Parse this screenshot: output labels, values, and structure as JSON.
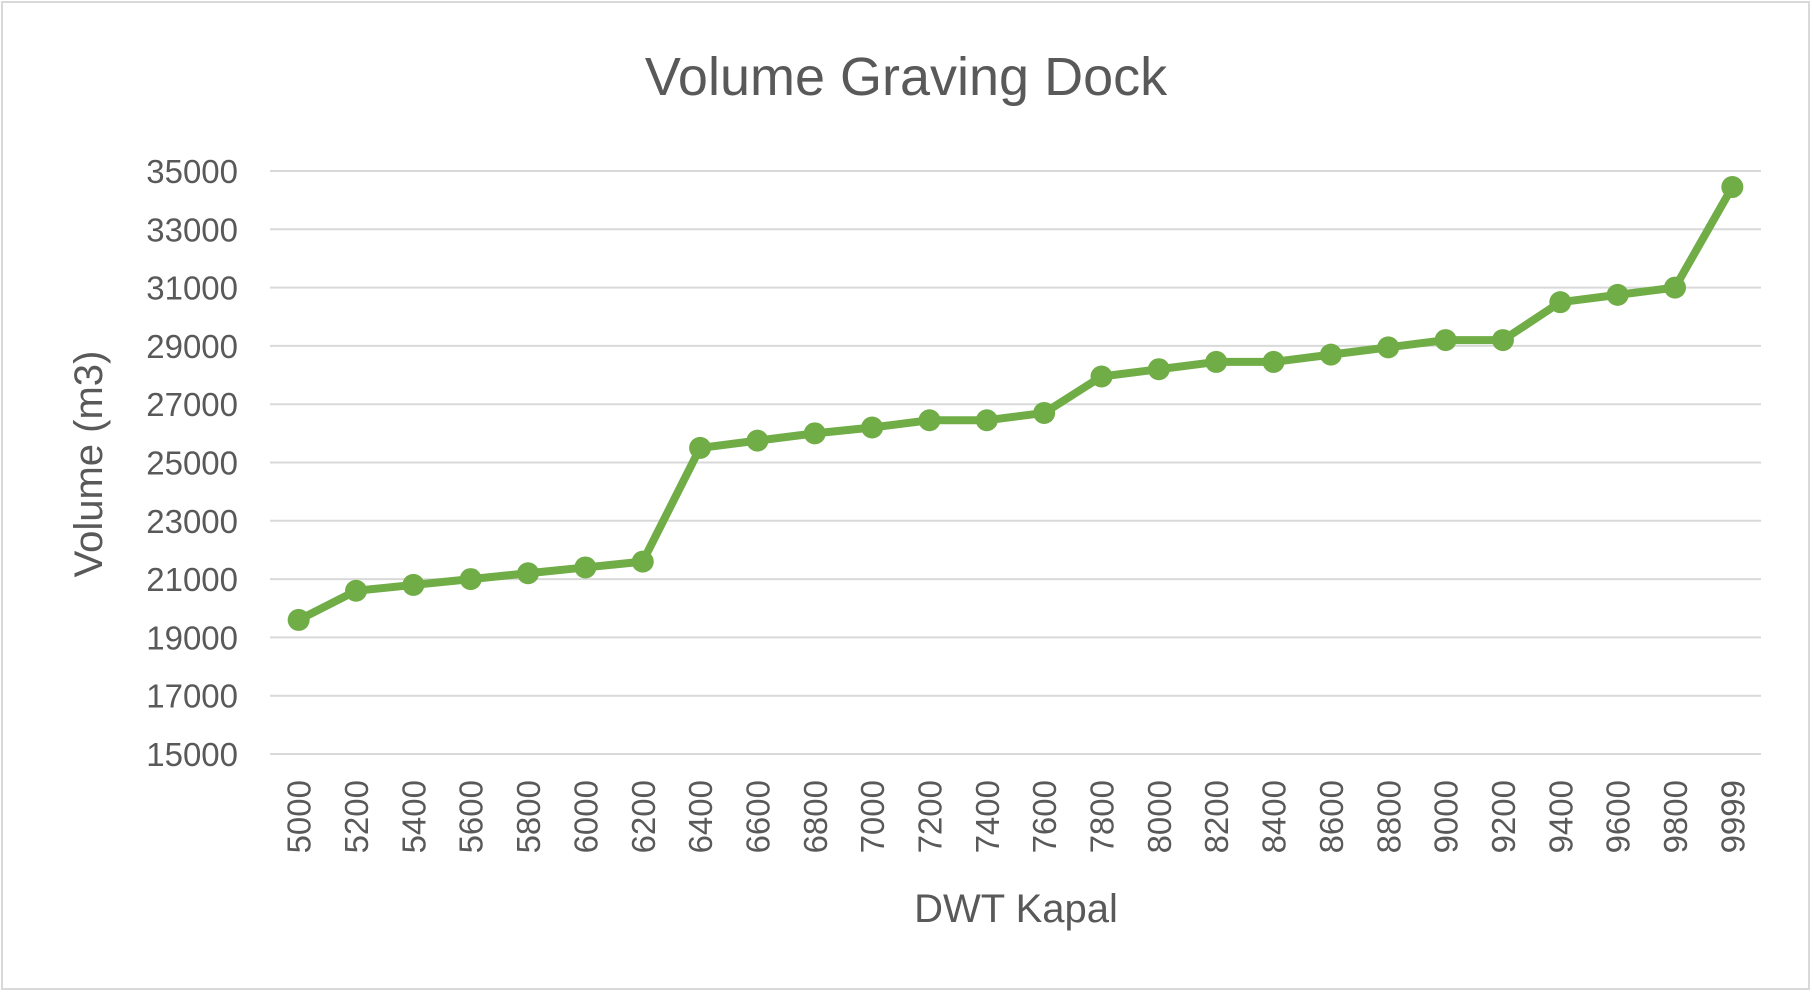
{
  "chart_data": {
    "type": "line",
    "title": "Volume Graving Dock",
    "xlabel": "DWT Kapal",
    "ylabel": "Volume (m3)",
    "categories": [
      "5000",
      "5200",
      "5400",
      "5600",
      "5800",
      "6000",
      "6200",
      "6400",
      "6600",
      "6800",
      "7000",
      "7200",
      "7400",
      "7600",
      "7800",
      "8000",
      "8200",
      "8400",
      "8600",
      "8800",
      "9000",
      "9200",
      "9400",
      "9600",
      "9800",
      "9999"
    ],
    "series": [
      {
        "values": [
          19600,
          20600,
          20800,
          21000,
          21200,
          21400,
          21600,
          25500,
          25750,
          26000,
          26200,
          26450,
          26450,
          26700,
          27950,
          28200,
          28450,
          28450,
          28700,
          28950,
          29200,
          29200,
          30500,
          30750,
          31000,
          34450
        ]
      }
    ],
    "ylim": [
      15000,
      35000
    ],
    "yticks": [
      15000,
      17000,
      19000,
      21000,
      23000,
      25000,
      27000,
      29000,
      31000,
      33000,
      35000
    ],
    "grid": true,
    "legend": "none",
    "colors": {
      "series": "#70ad47",
      "grid": "#d9d9d9",
      "text": "#595959",
      "border": "#d9d9d9"
    }
  }
}
